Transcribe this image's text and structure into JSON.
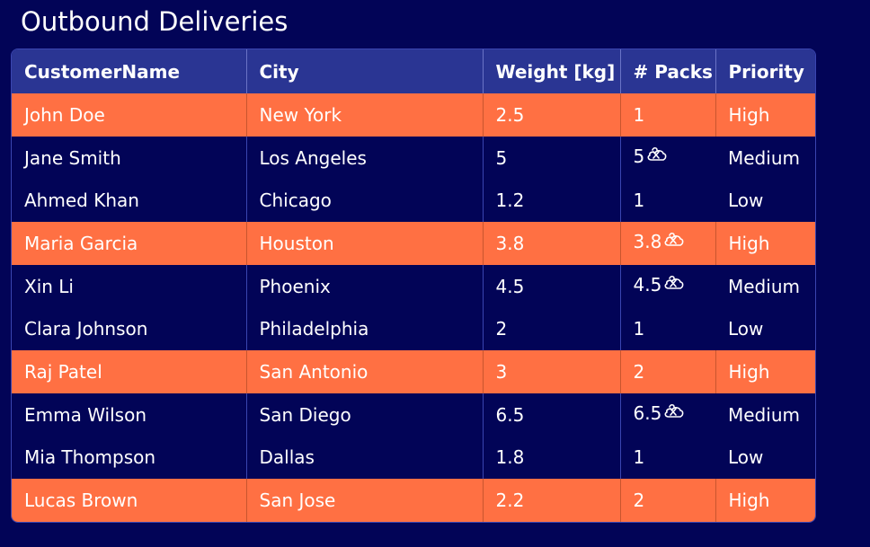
{
  "title": "Outbound Deliveries",
  "columns": [
    "CustomerName",
    "City",
    "Weight [kg]",
    "# Packs",
    "Priority"
  ],
  "rows": [
    {
      "name": "John Doe",
      "city": "New York",
      "weight": "2.5",
      "packs": "1",
      "priority": "High",
      "highlight": true,
      "icon": false
    },
    {
      "name": "Jane Smith",
      "city": "Los Angeles",
      "weight": "5",
      "packs": "5",
      "priority": "Medium",
      "highlight": false,
      "icon": true
    },
    {
      "name": "Ahmed Khan",
      "city": "Chicago",
      "weight": "1.2",
      "packs": "1",
      "priority": "Low",
      "highlight": false,
      "icon": false
    },
    {
      "name": "Maria Garcia",
      "city": "Houston",
      "weight": "3.8",
      "packs": "3.8",
      "priority": "High",
      "highlight": true,
      "icon": true
    },
    {
      "name": "Xin Li",
      "city": "Phoenix",
      "weight": "4.5",
      "packs": "4.5",
      "priority": "Medium",
      "highlight": false,
      "icon": true
    },
    {
      "name": "Clara Johnson",
      "city": "Philadelphia",
      "weight": "2",
      "packs": "1",
      "priority": "Low",
      "highlight": false,
      "icon": false
    },
    {
      "name": "Raj Patel",
      "city": "San Antonio",
      "weight": "3",
      "packs": "2",
      "priority": "High",
      "highlight": true,
      "icon": false
    },
    {
      "name": "Emma Wilson",
      "city": "San Diego",
      "weight": "6.5",
      "packs": "6.5",
      "priority": "Medium",
      "highlight": false,
      "icon": true
    },
    {
      "name": "Mia Thompson",
      "city": "Dallas",
      "weight": "1.8",
      "packs": "1",
      "priority": "Low",
      "highlight": false,
      "icon": false
    },
    {
      "name": "Lucas Brown",
      "city": "San Jose",
      "weight": "2.2",
      "packs": "2",
      "priority": "High",
      "highlight": true,
      "icon": false
    }
  ],
  "colors": {
    "background": "#020457",
    "header": "#2a3593",
    "highlight_row": "#ff7043",
    "text": "#ffffff"
  },
  "icons": {
    "pack_error": "broken-pack-icon"
  }
}
